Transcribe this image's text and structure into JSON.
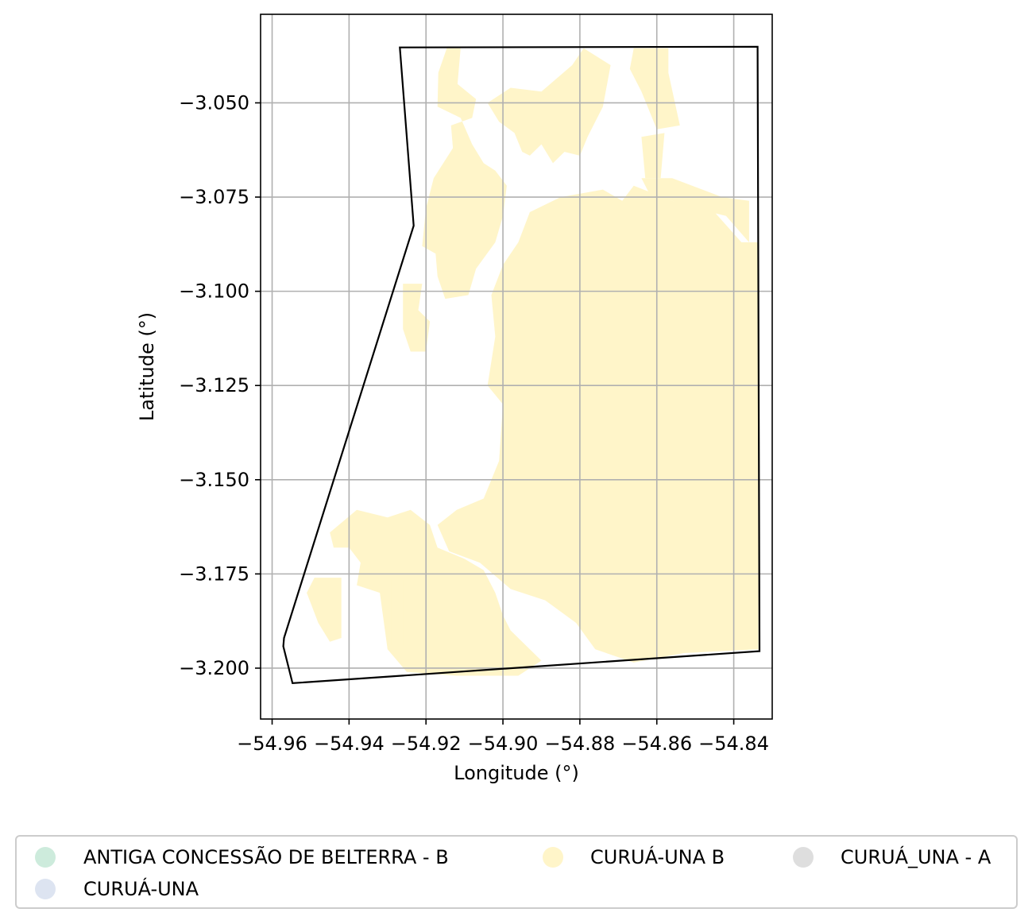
{
  "chart_data": {
    "type": "map",
    "xlabel": "Longitude (°)",
    "ylabel": "Latitude (°)",
    "xlim": [
      -54.963,
      -54.83
    ],
    "ylim": [
      -3.2135,
      -3.0265
    ],
    "grid": true,
    "x_ticks": [
      -54.96,
      -54.94,
      -54.92,
      -54.9,
      -54.88,
      -54.86,
      -54.84
    ],
    "x_tick_labels": [
      "−54.96",
      "−54.94",
      "−54.92",
      "−54.90",
      "−54.88",
      "−54.86",
      "−54.84"
    ],
    "y_ticks": [
      -3.05,
      -3.075,
      -3.1,
      -3.125,
      -3.15,
      -3.175,
      -3.2
    ],
    "y_tick_labels": [
      "−3.050",
      "−3.075",
      "−3.100",
      "−3.125",
      "−3.150",
      "−3.175",
      "−3.200"
    ],
    "boundary": {
      "stroke": "#000000",
      "points": [
        [
          -54.9268,
          -3.0353
        ],
        [
          -54.8338,
          -3.0351
        ],
        [
          -54.8333,
          -3.1955
        ],
        [
          -54.9547,
          -3.204
        ],
        [
          -54.9571,
          -3.1942
        ],
        [
          -54.9569,
          -3.192
        ],
        [
          -54.9232,
          -3.0826
        ]
      ]
    },
    "regions": [
      {
        "category": "CURUÁ-UNA B",
        "color": "#fff5c9",
        "polygons": [
          [
            [
              -54.9146,
              -3.0355
            ],
            [
              -54.911,
              -3.0355
            ],
            [
              -54.9118,
              -3.045
            ],
            [
              -54.907,
              -3.049
            ],
            [
              -54.908,
              -3.054
            ],
            [
              -54.9135,
              -3.056
            ],
            [
              -54.913,
              -3.062
            ],
            [
              -54.918,
              -3.07
            ],
            [
              -54.92,
              -3.078
            ],
            [
              -54.921,
              -3.088
            ],
            [
              -54.9175,
              -3.09
            ],
            [
              -54.917,
              -3.096
            ],
            [
              -54.915,
              -3.102
            ],
            [
              -54.909,
              -3.101
            ],
            [
              -54.907,
              -3.094
            ],
            [
              -54.902,
              -3.087
            ],
            [
              -54.9,
              -3.08
            ],
            [
              -54.899,
              -3.072
            ],
            [
              -54.902,
              -3.068
            ],
            [
              -54.905,
              -3.066
            ],
            [
              -54.908,
              -3.061
            ],
            [
              -54.911,
              -3.054
            ],
            [
              -54.917,
              -3.051
            ],
            [
              -54.9168,
              -3.042
            ]
          ],
          [
            [
              -54.904,
              -3.05
            ],
            [
              -54.898,
              -3.046
            ],
            [
              -54.89,
              -3.047
            ],
            [
              -54.882,
              -3.04
            ],
            [
              -54.879,
              -3.0355
            ],
            [
              -54.872,
              -3.04
            ],
            [
              -54.874,
              -3.051
            ],
            [
              -54.878,
              -3.059
            ],
            [
              -54.88,
              -3.064
            ],
            [
              -54.884,
              -3.063
            ],
            [
              -54.887,
              -3.066
            ],
            [
              -54.89,
              -3.061
            ],
            [
              -54.893,
              -3.064
            ],
            [
              -54.895,
              -3.063
            ],
            [
              -54.897,
              -3.058
            ],
            [
              -54.901,
              -3.055
            ]
          ],
          [
            [
              -54.866,
              -3.0355
            ],
            [
              -54.857,
              -3.0355
            ],
            [
              -54.857,
              -3.042
            ],
            [
              -54.854,
              -3.056
            ],
            [
              -54.86,
              -3.057
            ],
            [
              -54.864,
              -3.047
            ],
            [
              -54.867,
              -3.041
            ]
          ],
          [
            [
              -54.864,
              -3.059
            ],
            [
              -54.858,
              -3.058
            ],
            [
              -54.859,
              -3.07
            ],
            [
              -54.863,
              -3.07
            ]
          ],
          [
            [
              -54.864,
              -3.07
            ],
            [
              -54.856,
              -3.07
            ],
            [
              -54.843,
              -3.075
            ],
            [
              -54.836,
              -3.076
            ],
            [
              -54.836,
              -3.087
            ],
            [
              -54.842,
              -3.08
            ],
            [
              -54.85,
              -3.078
            ],
            [
              -54.856,
              -3.076
            ],
            [
              -54.862,
              -3.074
            ]
          ],
          [
            [
              -54.885,
              -3.075
            ],
            [
              -54.874,
              -3.073
            ],
            [
              -54.869,
              -3.076
            ],
            [
              -54.866,
              -3.072
            ],
            [
              -54.856,
              -3.076
            ],
            [
              -54.845,
              -3.079
            ],
            [
              -54.838,
              -3.087
            ],
            [
              -54.8338,
              -3.087
            ],
            [
              -54.8336,
              -3.195
            ],
            [
              -54.853,
              -3.196
            ],
            [
              -54.866,
              -3.1985
            ],
            [
              -54.876,
              -3.195
            ],
            [
              -54.881,
              -3.188
            ],
            [
              -54.889,
              -3.182
            ],
            [
              -54.898,
              -3.179
            ],
            [
              -54.906,
              -3.172
            ],
            [
              -54.914,
              -3.169
            ],
            [
              -54.917,
              -3.162
            ],
            [
              -54.912,
              -3.158
            ],
            [
              -54.905,
              -3.155
            ],
            [
              -54.901,
              -3.145
            ],
            [
              -54.9,
              -3.13
            ],
            [
              -54.904,
              -3.125
            ],
            [
              -54.902,
              -3.112
            ],
            [
              -54.903,
              -3.101
            ],
            [
              -54.9,
              -3.093
            ],
            [
              -54.896,
              -3.087
            ],
            [
              -54.893,
              -3.079
            ]
          ],
          [
            [
              -54.926,
              -3.098
            ],
            [
              -54.921,
              -3.098
            ],
            [
              -54.922,
              -3.105
            ],
            [
              -54.919,
              -3.108
            ],
            [
              -54.92,
              -3.116
            ],
            [
              -54.924,
              -3.116
            ],
            [
              -54.926,
              -3.11
            ]
          ],
          [
            [
              -54.945,
              -3.164
            ],
            [
              -54.938,
              -3.158
            ],
            [
              -54.93,
              -3.16
            ],
            [
              -54.924,
              -3.158
            ],
            [
              -54.919,
              -3.162
            ],
            [
              -54.917,
              -3.168
            ],
            [
              -54.91,
              -3.171
            ],
            [
              -54.905,
              -3.174
            ],
            [
              -54.902,
              -3.18
            ],
            [
              -54.9,
              -3.186
            ],
            [
              -54.898,
              -3.19
            ],
            [
              -54.89,
              -3.198
            ],
            [
              -54.896,
              -3.202
            ],
            [
              -54.912,
              -3.202
            ],
            [
              -54.925,
              -3.201
            ],
            [
              -54.93,
              -3.195
            ],
            [
              -54.932,
              -3.18
            ],
            [
              -54.938,
              -3.178
            ],
            [
              -54.937,
              -3.172
            ],
            [
              -54.94,
              -3.168
            ],
            [
              -54.944,
              -3.168
            ]
          ],
          [
            [
              -54.929,
              -3.1765
            ],
            [
              -54.926,
              -3.1765
            ],
            [
              -54.926,
              -3.194
            ],
            [
              -54.929,
              -3.194
            ]
          ],
          [
            [
              -54.949,
              -3.176
            ],
            [
              -54.942,
              -3.176
            ],
            [
              -54.942,
              -3.192
            ],
            [
              -54.945,
              -3.193
            ],
            [
              -54.948,
              -3.188
            ],
            [
              -54.951,
              -3.18
            ]
          ]
        ]
      }
    ],
    "legend": {
      "placement": "bottom",
      "entries": [
        {
          "label": "ANTIGA CONCESSÃO DE BELTERRA - B",
          "color": "#cdebdc"
        },
        {
          "label": "CURUÁ-UNA B",
          "color": "#fff5c9"
        },
        {
          "label": "CURUÁ_UNA - A",
          "color": "#dedede"
        },
        {
          "label": "CURUÁ-UNA",
          "color": "#dde4f1"
        }
      ]
    }
  }
}
